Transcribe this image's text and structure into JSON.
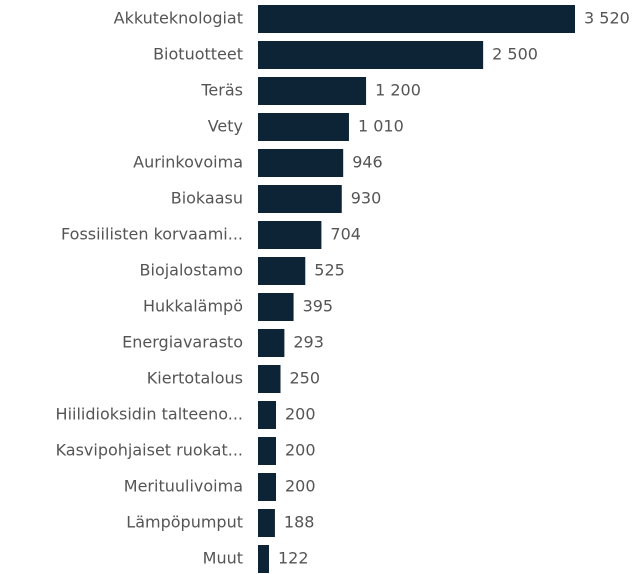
{
  "chart_data": {
    "type": "bar",
    "orientation": "horizontal",
    "color": "#0d2436",
    "categories": [
      "Akkuteknologiat",
      "Biotuotteet",
      "Teräs",
      "Vety",
      "Aurinkovoima",
      "Biokaasu",
      "Fossiilisten korvaami...",
      "Biojalostamo",
      "Hukkalämpö",
      "Energiavarasto",
      "Kiertotalous",
      "Hiilidioksidin talteeno...",
      "Kasvipohjaiset ruokat...",
      "Merituulivoima",
      "Lämpöpumput",
      "Muut"
    ],
    "values": [
      3520,
      2500,
      1200,
      1010,
      946,
      930,
      704,
      525,
      395,
      293,
      250,
      200,
      200,
      200,
      188,
      122
    ],
    "value_labels": [
      "3 520",
      "2 500",
      "1 200",
      "1 010",
      "946",
      "930",
      "704",
      "525",
      "395",
      "293",
      "250",
      "200",
      "200",
      "200",
      "188",
      "122"
    ]
  }
}
